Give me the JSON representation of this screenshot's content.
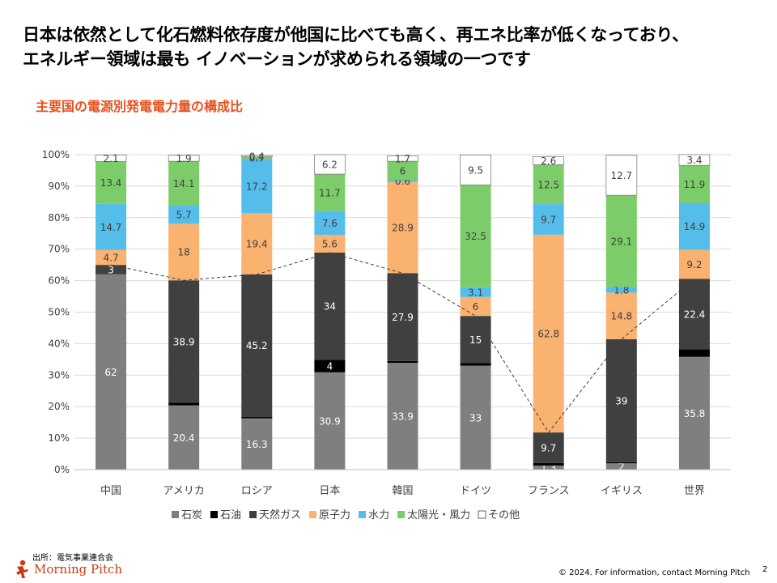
{
  "headline": {
    "line1": "日本は依然として化石燃料依存度が他国に比べても高く、再エネ比率が低くなっており、",
    "line2": "エネルギー領域は最も イノベーションが求められる領域の一つです"
  },
  "chart_data": {
    "type": "bar",
    "stacked": true,
    "title": "主要国の電源別発電電力量の構成比",
    "categories": [
      "中国",
      "アメリカ",
      "ロシア",
      "日本",
      "韓国",
      "ドイツ",
      "フランス",
      "イギリス",
      "世界"
    ],
    "series": [
      {
        "name": "石炭",
        "color": "#7f7f7f",
        "label_color": "#ffffff",
        "values": [
          62,
          20.4,
          16.3,
          30.9,
          33.9,
          33,
          1.3,
          2,
          35.8
        ]
      },
      {
        "name": "石油",
        "color": "#000000",
        "label_color": "#ffffff",
        "values": [
          0,
          0.8,
          0.5,
          4,
          0.6,
          0.8,
          0.8,
          0.4,
          2.4
        ]
      },
      {
        "name": "天然ガス",
        "color": "#404040",
        "label_color": "#ffffff",
        "values": [
          3,
          38.9,
          45.2,
          34,
          27.9,
          15,
          9.7,
          39,
          22.4
        ]
      },
      {
        "name": "原子力",
        "color": "#f9b26f",
        "label_color": "#404040",
        "values": [
          4.7,
          18,
          19.4,
          5.6,
          28.9,
          6,
          62.8,
          14.8,
          9.2
        ]
      },
      {
        "name": "水力",
        "color": "#55bde9",
        "label_color": "#404040",
        "values": [
          14.7,
          5.7,
          17.2,
          7.6,
          0.6,
          3.1,
          9.7,
          1.8,
          14.9
        ]
      },
      {
        "name": "太陽光・風力",
        "color": "#7ccd6a",
        "label_color": "#404040",
        "values": [
          13.4,
          14.1,
          0.7,
          11.7,
          6,
          32.5,
          12.5,
          29.1,
          11.9
        ]
      },
      {
        "name": "その他",
        "color": "#ffffff",
        "label_color": "#404040",
        "values": [
          2.1,
          1.9,
          0.4,
          6.2,
          1.7,
          9.5,
          2.6,
          12.7,
          3.4
        ]
      }
    ],
    "data_labels": [
      [
        "62",
        "",
        "3",
        "4.7",
        "14.7",
        "13.4",
        "2.1"
      ],
      [
        "20.4",
        "",
        "38.9",
        "18",
        "5.7",
        "14.1",
        "1.9"
      ],
      [
        "16.3",
        "",
        "45.2",
        "19.4",
        "17.2",
        "0.7",
        "0.4"
      ],
      [
        "30.9",
        "4",
        "34",
        "5.6",
        "7.6",
        "11.7",
        "6.2"
      ],
      [
        "33.9",
        "",
        "27.9",
        "28.9",
        "0.6",
        "6",
        "1.7"
      ],
      [
        "33",
        "",
        "15",
        "6",
        "3.1",
        "32.5",
        "9.5"
      ],
      [
        "1.3",
        "",
        "9.7",
        "62.8",
        "9.7",
        "12.5",
        "2.6"
      ],
      [
        "2",
        "",
        "39",
        "14.8",
        "1.8",
        "29.1",
        "12.7"
      ],
      [
        "35.8",
        "",
        "22.4",
        "9.2",
        "14.9",
        "11.9",
        "3.4"
      ]
    ],
    "y_ticks": [
      "0%",
      "10%",
      "20%",
      "30%",
      "40%",
      "50%",
      "60%",
      "70%",
      "80%",
      "90%",
      "100%"
    ],
    "ylim": [
      0,
      100
    ],
    "grid": true,
    "legend": "bottom",
    "connector": "dashed line linking tops of 天然ガス segments (fossil fuel share)"
  },
  "footer": {
    "source": "出所：電気事業連合会",
    "logo_text": "Morning Pitch",
    "copyright": "© 2024. For information, contact Morning Pitch",
    "page_number": "2"
  }
}
